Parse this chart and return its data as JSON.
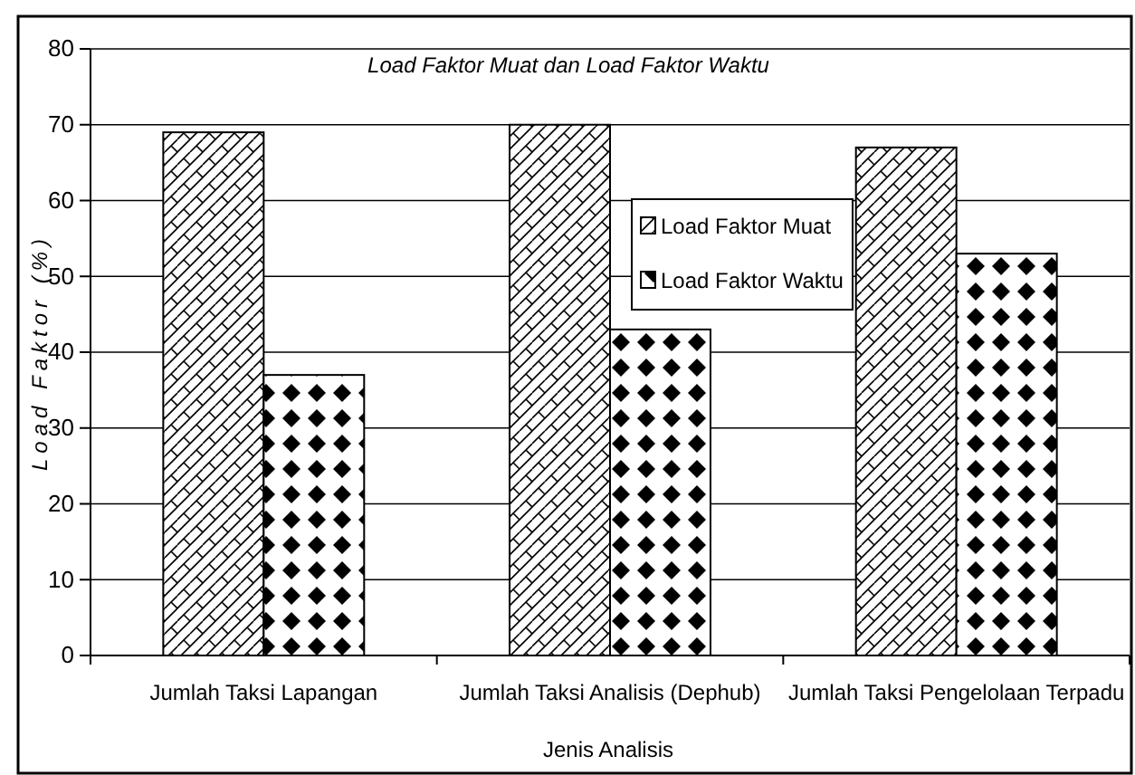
{
  "chart_data": {
    "type": "bar",
    "title": "Load Faktor Muat dan Load Faktor Waktu",
    "xlabel": "Jenis Analisis",
    "ylabel": "Load Faktor (%)",
    "categories": [
      "Jumlah Taksi Lapangan",
      "Jumlah Taksi Analisis (Dephub)",
      "Jumlah Taksi Pengelolaan Terpadu"
    ],
    "series": [
      {
        "name": "Load Faktor Muat",
        "color": "#000000",
        "values": [
          69,
          70,
          67
        ]
      },
      {
        "name": "Load Faktor Waktu",
        "color": "#000000",
        "values": [
          37,
          43,
          53
        ]
      }
    ],
    "ylim": [
      0,
      80
    ],
    "yticks": [
      0,
      10,
      20,
      30,
      40,
      50,
      60,
      70,
      80
    ],
    "grid": "y",
    "legend": "center"
  }
}
